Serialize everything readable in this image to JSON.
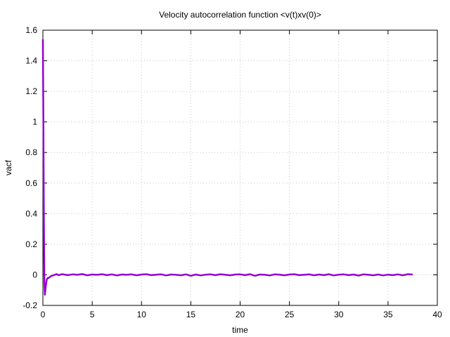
{
  "chart_data": {
    "type": "line",
    "title": "Velocity autocorrelation function <v(t)xv(0)>",
    "xlabel": "time",
    "ylabel": "vacf",
    "xlim": [
      0,
      40
    ],
    "ylim": [
      -0.2,
      1.6
    ],
    "xticks": [
      0,
      5,
      10,
      15,
      20,
      25,
      30,
      35,
      40
    ],
    "yticks": [
      -0.2,
      0,
      0.2,
      0.4,
      0.6,
      0.8,
      1,
      1.2,
      1.4,
      1.6
    ],
    "xtick_labels": [
      "0",
      "5",
      "10",
      "15",
      "20",
      "25",
      "30",
      "35",
      "40"
    ],
    "ytick_labels": [
      "-0.2",
      "0",
      "0.2",
      "0.4",
      "0.6",
      "0.8",
      "1",
      "1.2",
      "1.4",
      "1.6"
    ],
    "grid": true,
    "series": [
      {
        "color": "#9400d3",
        "x": [
          0,
          0.05,
          0.1,
          0.15,
          0.2,
          0.25,
          0.3,
          0.35,
          0.4,
          0.5,
          0.6,
          0.7,
          0.8,
          0.9,
          1.0,
          1.2,
          1.4,
          1.6,
          1.8,
          2.0,
          2.5,
          3,
          3.5,
          4,
          4.5,
          5,
          5.5,
          6,
          6.5,
          7,
          7.5,
          8,
          8.5,
          9,
          9.5,
          10,
          10.5,
          11,
          11.5,
          12,
          12.5,
          13,
          13.5,
          14,
          14.5,
          15,
          15.5,
          16,
          16.5,
          17,
          17.5,
          18,
          18.5,
          19,
          19.5,
          20,
          20.5,
          21,
          21.5,
          22,
          22.5,
          23,
          23.5,
          24,
          24.5,
          25,
          25.5,
          26,
          26.5,
          27,
          27.5,
          28,
          28.5,
          29,
          29.5,
          30,
          30.5,
          31,
          31.5,
          32,
          32.5,
          33,
          33.5,
          34,
          34.5,
          35,
          35.5,
          36,
          36.5,
          37,
          37.5
        ],
        "y": [
          1.54,
          1.0,
          0.35,
          -0.05,
          -0.13,
          -0.1,
          -0.07,
          -0.05,
          -0.03,
          -0.02,
          -0.02,
          -0.015,
          -0.01,
          -0.005,
          -0.005,
          0.0,
          0.005,
          -0.003,
          0.002,
          0.004,
          -0.002,
          0.003,
          0.0,
          0.005,
          -0.003,
          0.002,
          0.0,
          0.004,
          -0.002,
          0.003,
          -0.004,
          0.002,
          0.0,
          0.003,
          -0.003,
          0.002,
          0.004,
          -0.002,
          0.001,
          0.003,
          -0.004,
          0.002,
          0.0,
          -0.003,
          0.003,
          -0.006,
          0.002,
          -0.004,
          0.001,
          0.003,
          -0.002,
          0.004,
          0.0,
          -0.003,
          0.002,
          0.003,
          -0.002,
          0.004,
          -0.006,
          0.002,
          0.0,
          -0.004,
          0.003,
          0.001,
          -0.003,
          0.002,
          0.004,
          -0.002,
          0.0,
          0.003,
          -0.003,
          0.002,
          -0.002,
          0.004,
          -0.004,
          0.001,
          0.003,
          -0.002,
          0.002,
          -0.005,
          0.003,
          0.0,
          -0.003,
          0.002,
          -0.004,
          0.001,
          -0.002,
          0.003,
          -0.003,
          0.004,
          0.002
        ]
      }
    ]
  }
}
